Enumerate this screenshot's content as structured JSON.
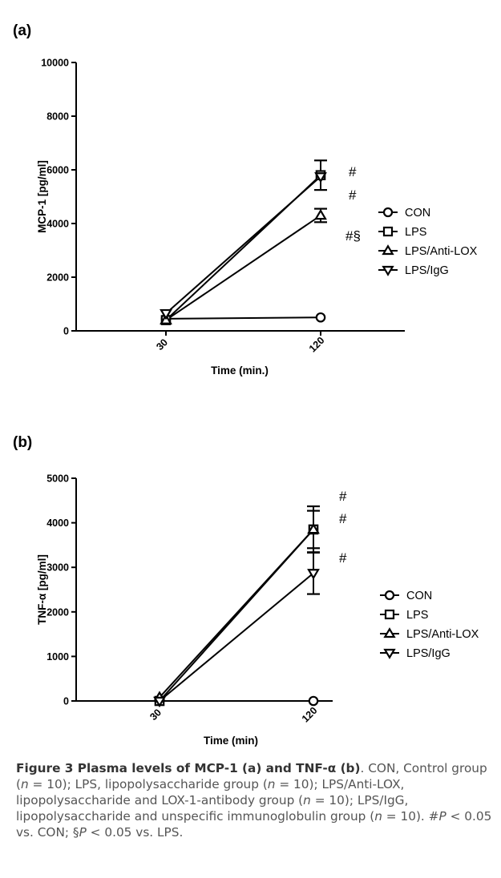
{
  "chart_data": [
    {
      "panel": "(a)",
      "type": "line",
      "xlabel": "Time (min.)",
      "ylabel": "MCP-1 [pg/ml]",
      "categories": [
        "30",
        "120"
      ],
      "ylim": [
        0,
        10000
      ],
      "yticks": [
        0,
        2000,
        4000,
        6000,
        8000,
        10000
      ],
      "series": [
        {
          "name": "CON",
          "marker": "circle",
          "values": [
            450,
            500
          ],
          "errors": [
            0,
            0
          ],
          "annotation": ""
        },
        {
          "name": "LPS",
          "marker": "square",
          "values": [
            400,
            5800
          ],
          "errors": [
            0,
            550
          ],
          "annotation": "#"
        },
        {
          "name": "LPS/Anti-LOX",
          "marker": "triangle-up",
          "values": [
            400,
            4300
          ],
          "errors": [
            0,
            250
          ],
          "annotation": "#§"
        },
        {
          "name": "LPS/IgG",
          "marker": "triangle-down",
          "values": [
            650,
            5750
          ],
          "errors": [
            0,
            0
          ],
          "annotation": "#"
        }
      ],
      "legend": "right"
    },
    {
      "panel": "(b)",
      "type": "line",
      "xlabel": "Time (min)",
      "ylabel": "TNF-α [pg/ml]",
      "categories": [
        "30",
        "120"
      ],
      "ylim": [
        0,
        5000
      ],
      "yticks": [
        0,
        1000,
        2000,
        3000,
        4000,
        5000
      ],
      "series": [
        {
          "name": "CON",
          "marker": "circle",
          "values": [
            0,
            0
          ],
          "errors": [
            0,
            0
          ],
          "annotation": ""
        },
        {
          "name": "LPS",
          "marker": "square",
          "values": [
            0,
            3850
          ],
          "errors": [
            0,
            520
          ],
          "annotation": "#"
        },
        {
          "name": "LPS/Anti-LOX",
          "marker": "triangle-up",
          "values": [
            80,
            3850
          ],
          "errors": [
            0,
            420
          ],
          "annotation": "#"
        },
        {
          "name": "LPS/IgG",
          "marker": "triangle-down",
          "values": [
            0,
            2870
          ],
          "errors": [
            0,
            470
          ],
          "annotation": "#"
        }
      ],
      "legend": "right"
    }
  ],
  "caption": {
    "title": "Figure 3 Plasma levels of MCP-1 (a) and TNF-α (b)",
    "p1": ". CON, Control group (",
    "n1": "n",
    "p2": " = 10); LPS, lipopolysaccharide group (",
    "n2": "n",
    "p3": " = 10); LPS/Anti-LOX, lipopolysaccharide and LOX-1-antibody group (",
    "n3": "n",
    "p4": " = 10); LPS/IgG, lipopolysaccharide and unspecific immunoglobulin group (",
    "n4": "n",
    "p5": " = 10). #",
    "P1": "P",
    "p6": " < 0.05 vs. CON; §",
    "P2": "P",
    "p7": " < 0.05 vs. LPS."
  }
}
